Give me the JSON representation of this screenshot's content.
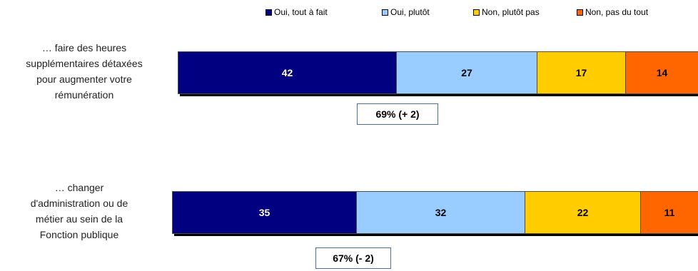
{
  "chart_data": {
    "type": "bar",
    "orientation": "horizontal",
    "stacked": true,
    "legend_position": "top",
    "legend": [
      "Oui, tout à fait",
      "Oui, plutôt",
      "Non, plutôt pas",
      "Non, pas du tout"
    ],
    "colors": [
      "#000080",
      "#99ccff",
      "#ffcc00",
      "#ff6600"
    ],
    "text_colors": [
      "#ffffff",
      "#000000",
      "#000000",
      "#000000"
    ],
    "categories": [
      "… faire des heures supplémentaires détaxées pour augmenter votre rémunération",
      "… changer d'administration ou de métier au sein de la Fonction publique"
    ],
    "category_lines": [
      [
        "… faire des heures",
        "supplémentaires détaxées",
        "pour augmenter votre",
        "rémunération"
      ],
      [
        "… changer",
        "d'administration ou de",
        "métier au sein de la",
        "Fonction publique"
      ]
    ],
    "series": [
      {
        "name": "Oui, tout à fait",
        "values": [
          42,
          35
        ]
      },
      {
        "name": "Oui, plutôt",
        "values": [
          27,
          32
        ]
      },
      {
        "name": "Non, plutôt pas",
        "values": [
          17,
          22
        ]
      },
      {
        "name": "Non, pas du tout",
        "values": [
          14,
          11
        ]
      }
    ],
    "annotations": [
      "69% (+ 2)",
      "67% (- 2)"
    ],
    "xlim": [
      0,
      100
    ],
    "grid": false
  }
}
